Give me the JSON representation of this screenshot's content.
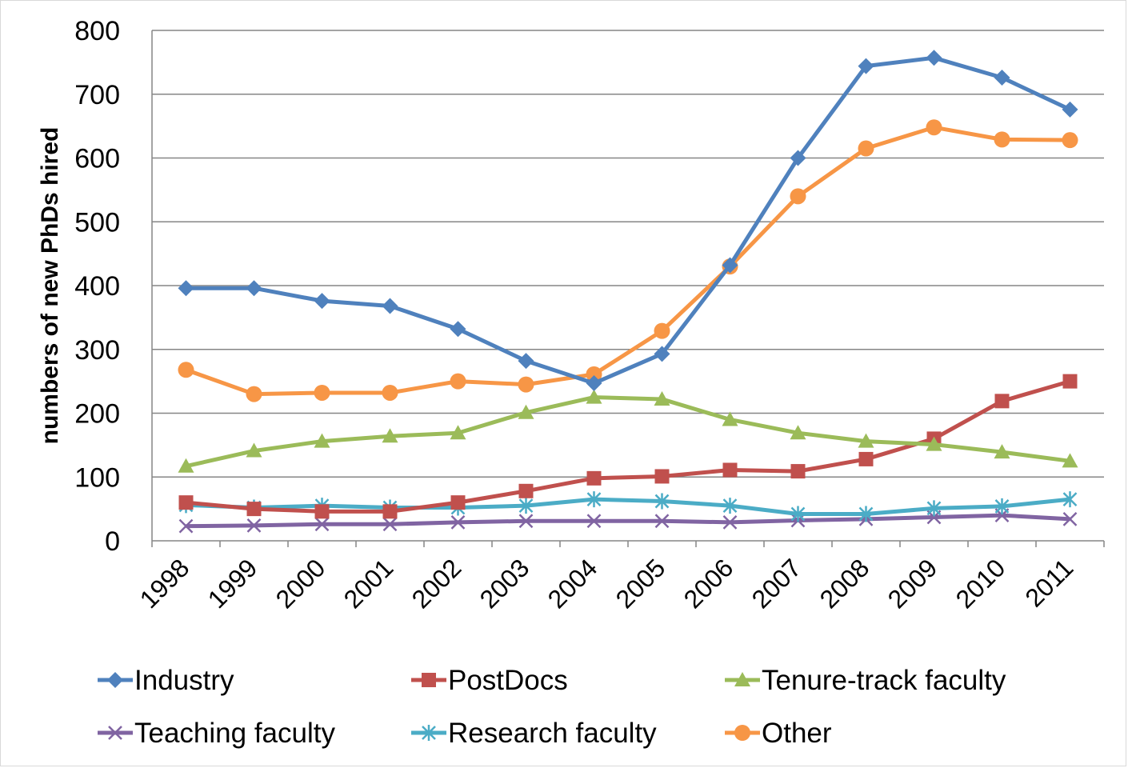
{
  "chart_data": {
    "type": "line",
    "title": "",
    "xlabel": "",
    "ylabel": "numbers of new PhDs hired",
    "ylim": [
      0,
      800
    ],
    "yticks": [
      0,
      100,
      200,
      300,
      400,
      500,
      600,
      700,
      800
    ],
    "grid": true,
    "legend_position": "bottom",
    "categories": [
      "1998",
      "1999",
      "2000",
      "2001",
      "2002",
      "2003",
      "2004",
      "2005",
      "2006",
      "2007",
      "2008",
      "2009",
      "2010",
      "2011"
    ],
    "series": [
      {
        "name": "Industry",
        "color": "#4f81bd",
        "marker": "diamond",
        "values": [
          396,
          396,
          376,
          368,
          332,
          282,
          247,
          293,
          432,
          600,
          744,
          757,
          726,
          676
        ]
      },
      {
        "name": "PostDocs",
        "color": "#c0504d",
        "marker": "square",
        "values": [
          60,
          50,
          46,
          46,
          60,
          78,
          98,
          101,
          111,
          109,
          128,
          160,
          219,
          250
        ]
      },
      {
        "name": "Tenure-track faculty",
        "color": "#9bbb59",
        "marker": "triangle",
        "values": [
          117,
          141,
          156,
          164,
          169,
          201,
          225,
          222,
          190,
          169,
          156,
          151,
          139,
          125
        ]
      },
      {
        "name": "Teaching faculty",
        "color": "#8064a2",
        "marker": "x",
        "values": [
          23,
          24,
          26,
          26,
          29,
          31,
          31,
          31,
          29,
          32,
          34,
          37,
          40,
          34
        ]
      },
      {
        "name": "Research faculty",
        "color": "#4bacc6",
        "marker": "asterisk",
        "values": [
          56,
          52,
          55,
          52,
          52,
          55,
          65,
          62,
          55,
          42,
          42,
          51,
          54,
          65
        ]
      },
      {
        "name": "Other",
        "color": "#f79646",
        "marker": "circle",
        "values": [
          268,
          230,
          232,
          232,
          250,
          245,
          261,
          329,
          430,
          540,
          615,
          648,
          629,
          628
        ]
      }
    ]
  }
}
